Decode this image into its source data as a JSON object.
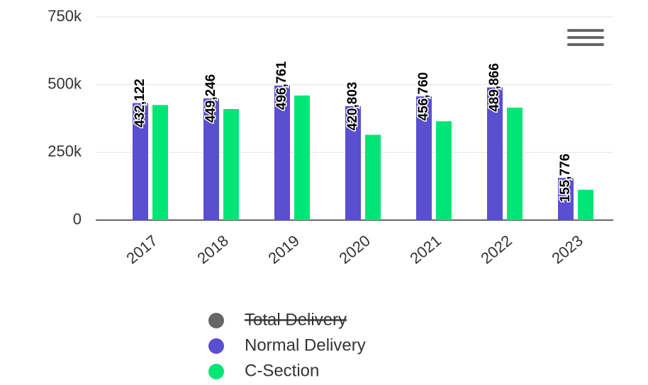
{
  "chart_data": {
    "type": "bar",
    "categories": [
      "2017",
      "2018",
      "2019",
      "2020",
      "2021",
      "2022",
      "2023"
    ],
    "series": [
      {
        "name": "Total Delivery",
        "color": "#666666",
        "visible": false
      },
      {
        "name": "Normal Delivery",
        "color": "#5a4fcf",
        "values": [
          432122,
          449246,
          496761,
          420803,
          456760,
          489866,
          155776
        ],
        "value_labels": [
          "432,122",
          "449,246",
          "496,761",
          "420,803",
          "456,760",
          "489,866",
          "155,776"
        ]
      },
      {
        "name": "C-Section",
        "color": "#00e676",
        "values": [
          425000,
          410000,
          460000,
          315000,
          365000,
          415000,
          112000
        ]
      }
    ],
    "ylim": [
      0,
      750000
    ],
    "yticks": [
      0,
      {
        "value": 250000,
        "label": "250k"
      },
      {
        "value": 500000,
        "label": "500k"
      },
      {
        "value": 750000,
        "label": "750k"
      }
    ],
    "grid": true
  }
}
